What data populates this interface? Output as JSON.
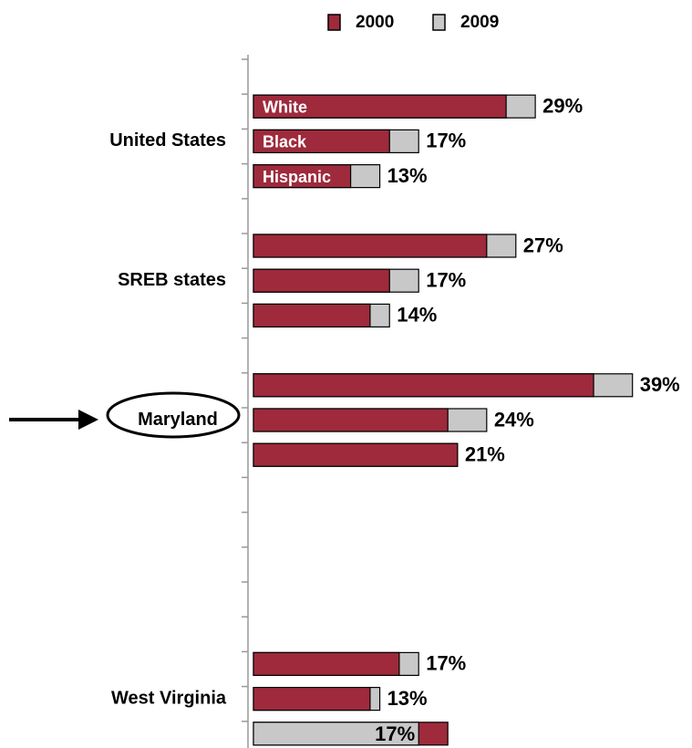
{
  "chart_data": {
    "type": "bar",
    "orientation": "horizontal",
    "groups": [
      "United States",
      "SREB states",
      "Maryland",
      "West Virginia"
    ],
    "categories": [
      "White",
      "Black",
      "Hispanic",
      null,
      null,
      null,
      null,
      null,
      null,
      null,
      null,
      null
    ],
    "series": [
      {
        "name": "2000",
        "color": "#9e2a3c",
        "values": [
          26,
          14,
          10,
          24,
          14,
          12,
          35,
          20,
          21,
          15,
          12,
          20
        ]
      },
      {
        "name": "2009",
        "color": "#c8c8c8",
        "values": [
          29,
          17,
          13,
          27,
          17,
          14,
          39,
          24,
          21,
          17,
          13,
          17
        ],
        "value_labels": [
          "29%",
          "17%",
          "13%",
          "27%",
          "17%",
          "14%",
          "39%",
          "24%",
          "21%",
          "17%",
          "13%",
          "17%"
        ]
      }
    ],
    "xlim": [
      0,
      44
    ],
    "legend": "top"
  }
}
